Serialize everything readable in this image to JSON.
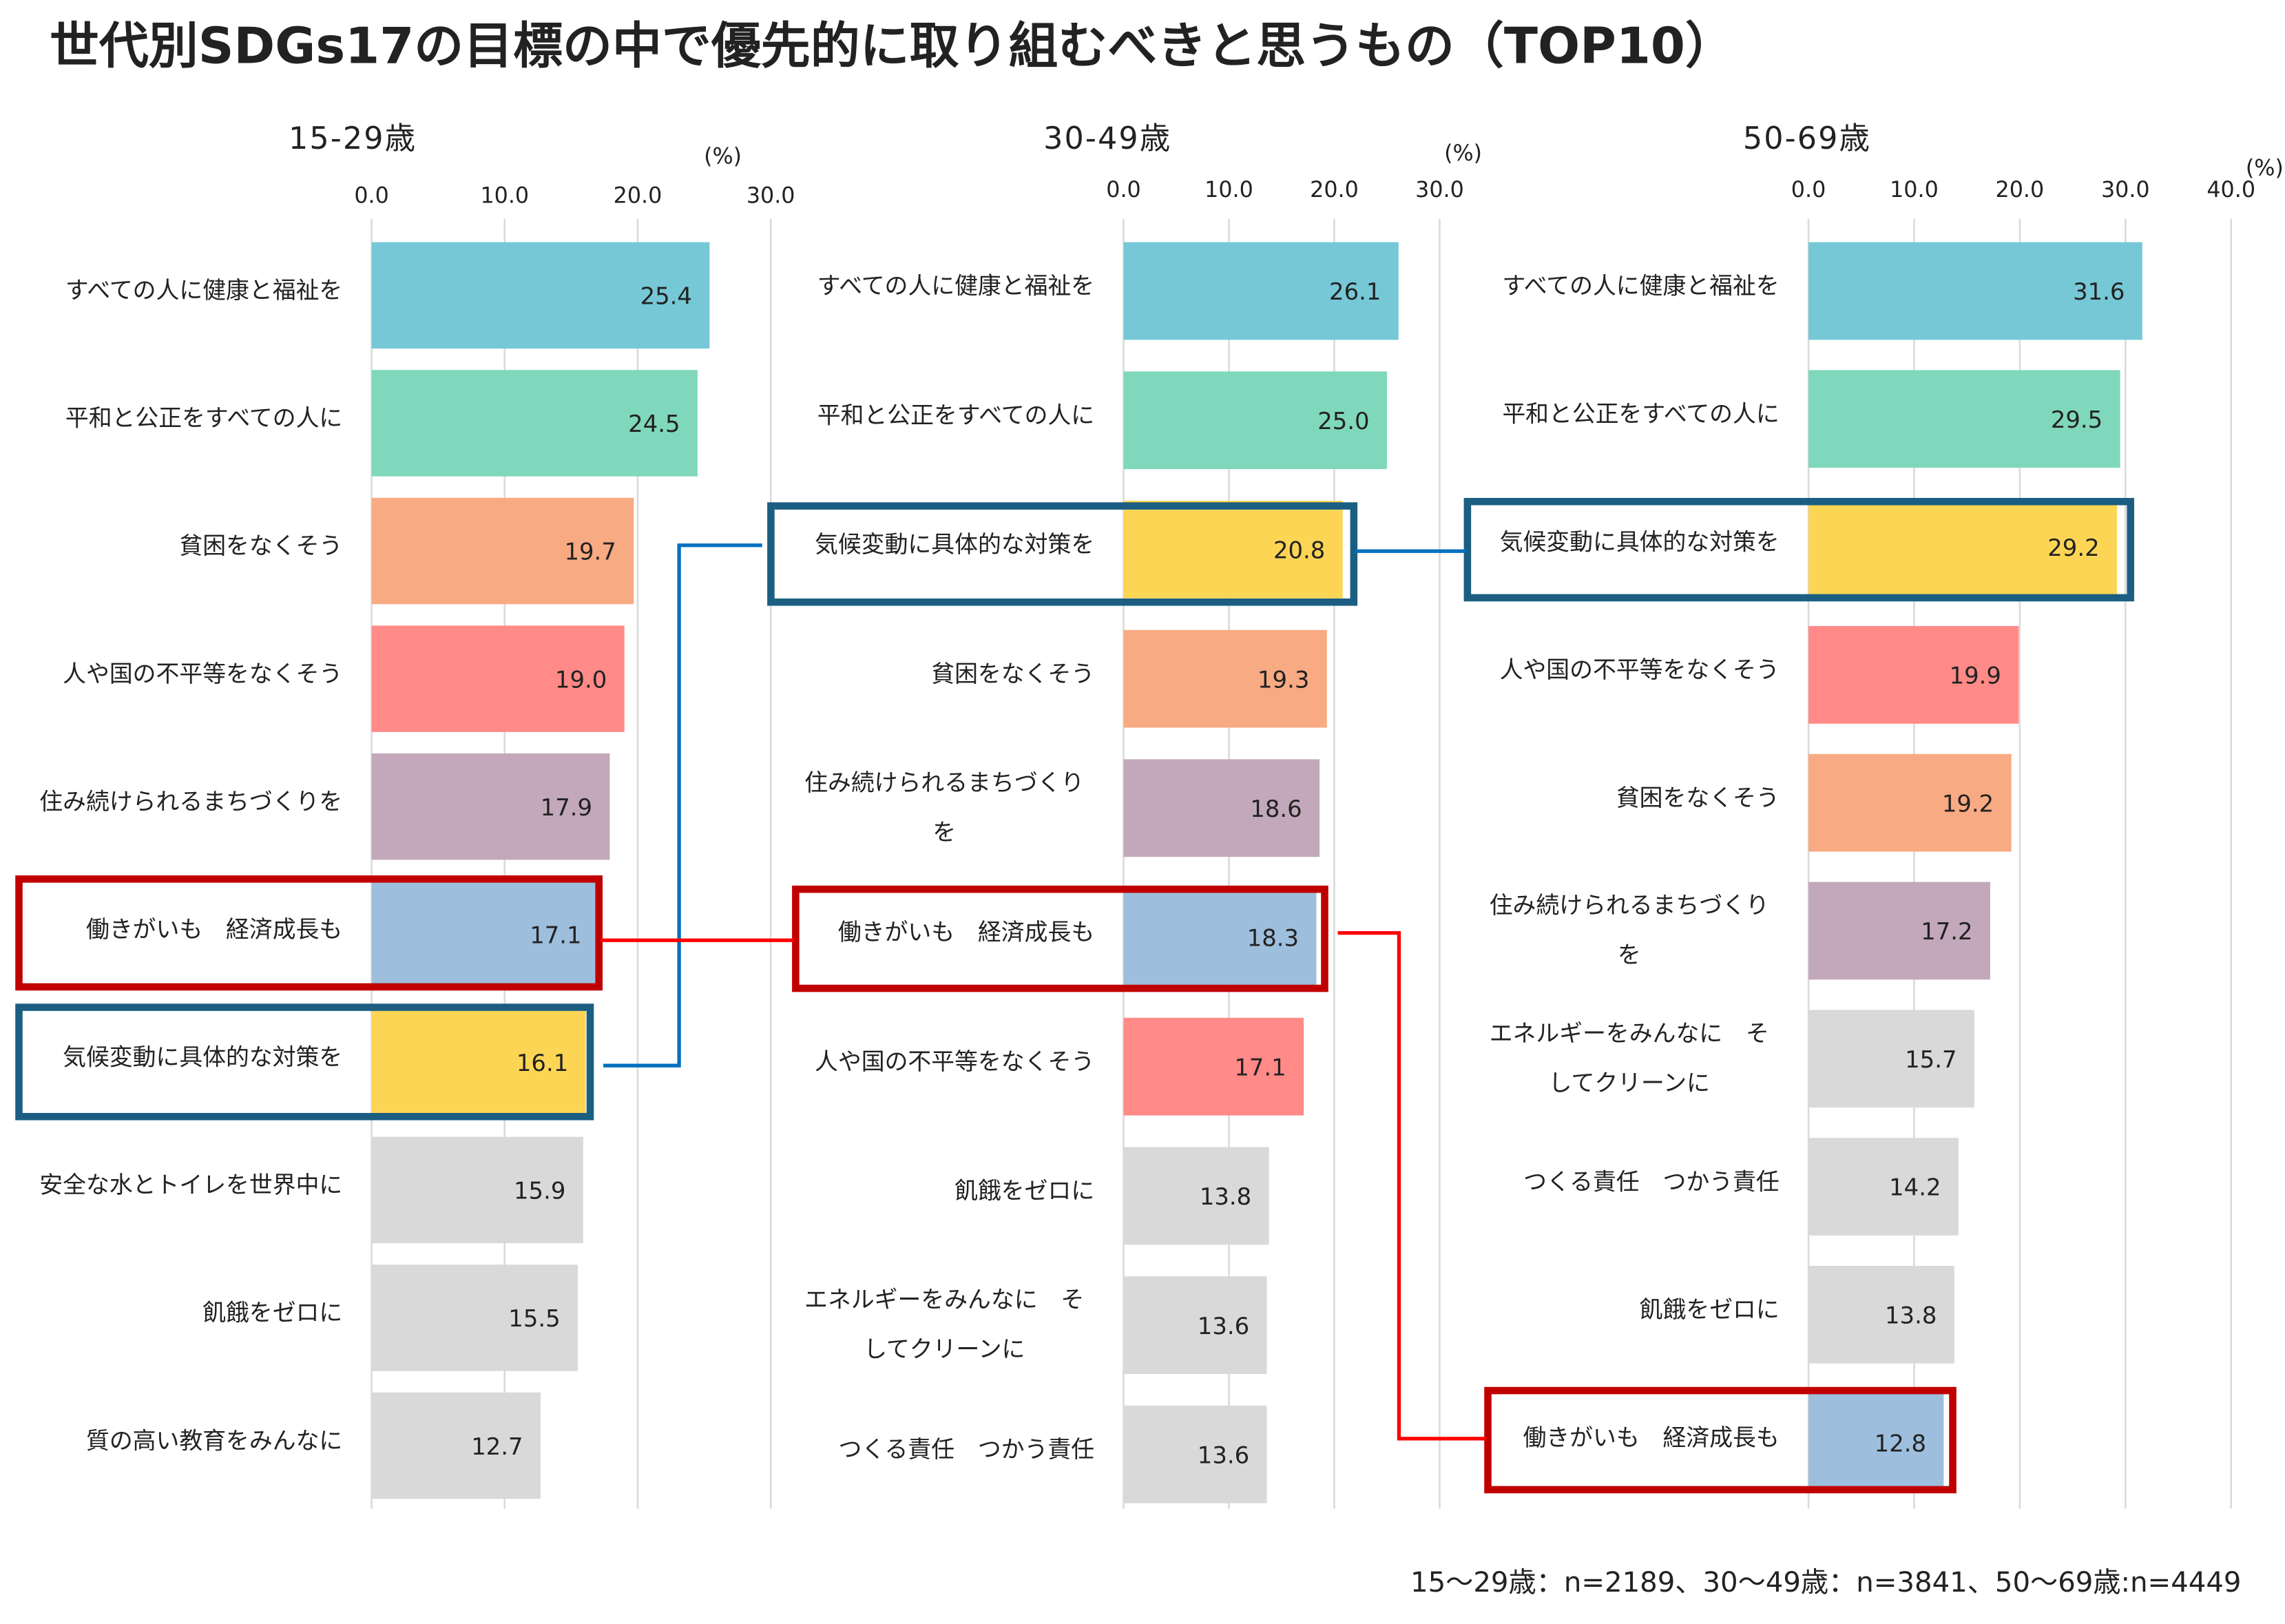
{
  "title": "世代別SDGs17の目標の中で優先的に取り組むべきと思うもの（TOP10）",
  "footnote": "15〜29歳：n=2189、30〜49歳：n=3841、50〜69歳:n=4449",
  "colors": {
    "すべての人に健康と福祉を": "#76C8D6",
    "平和と公正をすべての人に": "#7FD8BB",
    "貧困をなくそう": "#F8AA82",
    "人や国の不平等をなくそう": "#FF8A87",
    "住み続けられるまちづくりを": "#C3A8BB",
    "働きがいも　経済成長も": "#9DBFDD",
    "気候変動に具体的な対策を": "#FDD555",
    "other": "#D9D9D9",
    "highlight_climate": "#1B5E82",
    "highlight_work": "#C00000",
    "connector_climate": "#0070C0",
    "connector_work": "#FF0000"
  },
  "chart_data": [
    {
      "type": "bar",
      "orientation": "horizontal",
      "title": "15-29歳",
      "unit_label": "(%)",
      "xlim": [
        0,
        30
      ],
      "ticks": [
        "0.0",
        "10.0",
        "20.0",
        "30.0"
      ],
      "grid": true,
      "categories": [
        "すべての人に健康と福祉を",
        "平和と公正をすべての人に",
        "貧困をなくそう",
        "人や国の不平等をなくそう",
        "住み続けられるまちづくりを",
        "働きがいも　経済成長も",
        "気候変動に具体的な対策を",
        "安全な水とトイレを世界中に",
        "飢餓をゼロに",
        "質の高い教育をみんなに"
      ],
      "values": [
        "25.4",
        "24.5",
        "19.7",
        "19.0",
        "17.9",
        "17.1",
        "16.1",
        "15.9",
        "15.5",
        "12.7"
      ]
    },
    {
      "type": "bar",
      "orientation": "horizontal",
      "title": "30-49歳",
      "unit_label": "(%)",
      "xlim": [
        0,
        30
      ],
      "ticks": [
        "0.0",
        "10.0",
        "20.0",
        "30.0"
      ],
      "grid": true,
      "categories": [
        "すべての人に健康と福祉を",
        "平和と公正をすべての人に",
        "気候変動に具体的な対策を",
        "貧困をなくそう",
        "住み続けられるまちづくりを",
        "働きがいも　経済成長も",
        "人や国の不平等をなくそう",
        "飢餓をゼロに",
        "エネルギーをみんなに　そしてクリーンに",
        "つくる責任　つかう責任"
      ],
      "values": [
        "26.1",
        "25.0",
        "20.8",
        "19.3",
        "18.6",
        "18.3",
        "17.1",
        "13.8",
        "13.6",
        "13.6"
      ]
    },
    {
      "type": "bar",
      "orientation": "horizontal",
      "title": "50-69歳",
      "unit_label": "(%)",
      "xlim": [
        0,
        40
      ],
      "ticks": [
        "0.0",
        "10.0",
        "20.0",
        "30.0",
        "40.0"
      ],
      "grid": true,
      "categories": [
        "すべての人に健康と福祉を",
        "平和と公正をすべての人に",
        "気候変動に具体的な対策を",
        "人や国の不平等をなくそう",
        "貧困をなくそう",
        "住み続けられるまちづくりを",
        "エネルギーをみんなに　そしてクリーンに",
        "つくる責任　つかう責任",
        "飢餓をゼロに",
        "働きがいも　経済成長も"
      ],
      "values": [
        "31.6",
        "29.5",
        "29.2",
        "19.9",
        "19.2",
        "17.2",
        "15.7",
        "14.2",
        "13.8",
        "12.8"
      ]
    }
  ]
}
